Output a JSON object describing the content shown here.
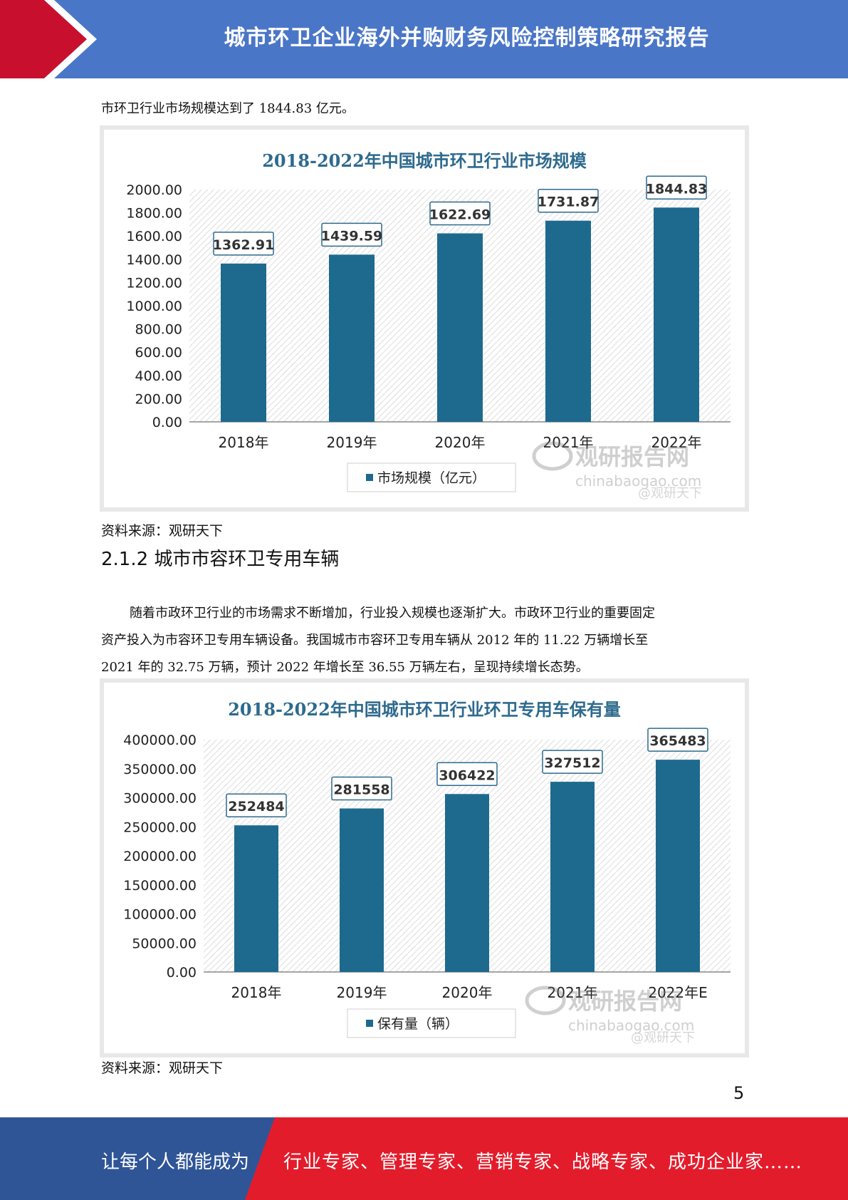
{
  "header": {
    "title": "城市环卫企业海外并购财务风险控制策略研究报告"
  },
  "intro_text": "市环卫行业市场规模达到了 1844.83 亿元。",
  "source1": "资料来源：观研天下",
  "section_heading": "2.1.2 城市市容环卫专用车辆",
  "body_paragraph": [
    "随着市政环卫行业的市场需求不断增加，行业投入规模也逐渐扩大。市政环卫行业的重要固定",
    "资产投入为市容环卫专用车辆设备。我国城市市容环卫专用车辆从 2012 年的 11.22 万辆增长至",
    "2021 年的 32.75 万辆，预计 2022 年增长至 36.55 万辆左右，呈现持续增长态势。"
  ],
  "source2": "资料来源：观研天下",
  "page_number": "5",
  "footer": {
    "left": "让每个人都能成为",
    "right": "行业专家、管理专家、营销专家、战略专家、成功企业家……"
  },
  "watermark": {
    "brand": "观研报告网",
    "url": "chinabaogao.com",
    "handle": "@观研天下"
  },
  "colors": {
    "bar": "#1d6a8e",
    "title": "#2e6a8e",
    "header": "#4a76c7",
    "red": "#e31c2c"
  },
  "chart_data": [
    {
      "type": "bar",
      "title": "2018-2022年中国城市环卫行业市场规模",
      "categories": [
        "2018年",
        "2019年",
        "2020年",
        "2021年",
        "2022年"
      ],
      "series": [
        {
          "name": "市场规模（亿元）",
          "values": [
            1362.91,
            1439.59,
            1622.69,
            1731.87,
            1844.83
          ]
        }
      ],
      "data_labels": [
        "1362.91",
        "1439.59",
        "1622.69",
        "1731.87",
        "1844.83"
      ],
      "ylim": [
        0,
        2000
      ],
      "yticks": [
        "0.00",
        "200.00",
        "400.00",
        "600.00",
        "800.00",
        "1000.00",
        "1200.00",
        "1400.00",
        "1600.00",
        "1800.00",
        "2000.00"
      ],
      "legend_position": "bottom"
    },
    {
      "type": "bar",
      "title": "2018-2022年中国城市环卫行业环卫专用车保有量",
      "categories": [
        "2018年",
        "2019年",
        "2020年",
        "2021年",
        "2022年E"
      ],
      "series": [
        {
          "name": "保有量（辆）",
          "values": [
            252484,
            281558,
            306422,
            327512,
            365483
          ]
        }
      ],
      "data_labels": [
        "252484",
        "281558",
        "306422",
        "327512",
        "365483"
      ],
      "ylim": [
        0,
        400000
      ],
      "yticks": [
        "0.00",
        "50000.00",
        "100000.00",
        "150000.00",
        "200000.00",
        "250000.00",
        "300000.00",
        "350000.00",
        "400000.00"
      ],
      "legend_position": "bottom"
    }
  ]
}
